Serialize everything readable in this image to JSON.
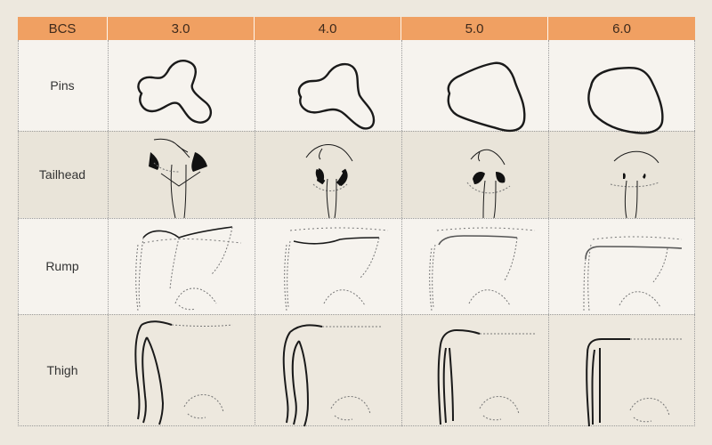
{
  "table": {
    "corner_label": "BCS",
    "scores": [
      "3.0",
      "4.0",
      "5.0",
      "6.0"
    ],
    "rows": [
      {
        "label": "Pins"
      },
      {
        "label": "Tailhead"
      },
      {
        "label": "Rump"
      },
      {
        "label": "Thigh"
      }
    ]
  },
  "colors": {
    "header_bg": "#f0a062",
    "row_light": "#f6f3ee",
    "row_dark": "#e9e4d9",
    "page_bg": "#ede8de",
    "line": "#1a1a1a"
  }
}
